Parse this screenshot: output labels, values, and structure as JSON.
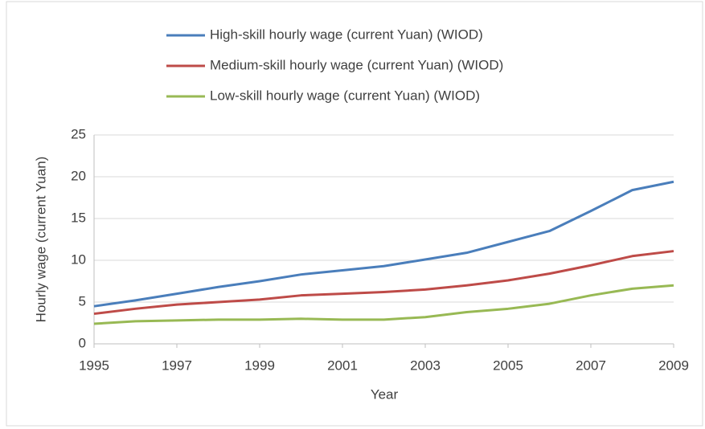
{
  "chart_data": {
    "type": "line",
    "x": [
      1995,
      1996,
      1997,
      1998,
      1999,
      2000,
      2001,
      2002,
      2003,
      2004,
      2005,
      2006,
      2007,
      2008,
      2009
    ],
    "series": [
      {
        "name": "High-skill hourly wage (current Yuan) (WIOD)",
        "color": "#4a7ebb",
        "values": [
          4.5,
          5.2,
          6.0,
          6.8,
          7.5,
          8.3,
          8.8,
          9.3,
          10.1,
          10.9,
          12.2,
          13.5,
          15.9,
          18.4,
          19.4
        ]
      },
      {
        "name": "Medium-skill hourly wage (current Yuan) (WIOD)",
        "color": "#be4b48",
        "values": [
          3.6,
          4.2,
          4.7,
          5.0,
          5.3,
          5.8,
          6.0,
          6.2,
          6.5,
          7.0,
          7.6,
          8.4,
          9.4,
          10.5,
          11.1
        ]
      },
      {
        "name": "Low-skill hourly wage (current Yuan) (WIOD)",
        "color": "#98b954",
        "values": [
          2.4,
          2.7,
          2.8,
          2.9,
          2.9,
          3.0,
          2.9,
          2.9,
          3.2,
          3.8,
          4.2,
          4.8,
          5.8,
          6.6,
          7.0
        ]
      }
    ],
    "x_label": "Year",
    "y_label": "Hourly wage (current Yuan)",
    "xlim": [
      1995,
      2009
    ],
    "xticks": [
      1995,
      1997,
      1999,
      2001,
      2003,
      2005,
      2007,
      2009
    ],
    "ylim": [
      0,
      25
    ],
    "yticks": [
      0,
      5,
      10,
      15,
      20,
      25
    ],
    "grid": true,
    "legend": "top"
  }
}
